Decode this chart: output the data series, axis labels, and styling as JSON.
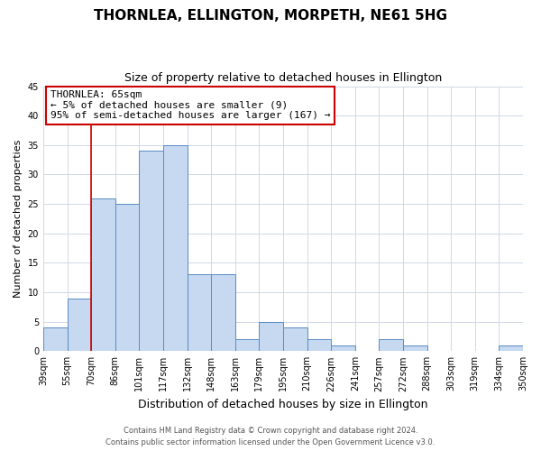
{
  "title": "THORNLEA, ELLINGTON, MORPETH, NE61 5HG",
  "subtitle": "Size of property relative to detached houses in Ellington",
  "xlabel": "Distribution of detached houses by size in Ellington",
  "ylabel": "Number of detached properties",
  "bin_labels": [
    "39sqm",
    "55sqm",
    "70sqm",
    "86sqm",
    "101sqm",
    "117sqm",
    "132sqm",
    "148sqm",
    "163sqm",
    "179sqm",
    "195sqm",
    "210sqm",
    "226sqm",
    "241sqm",
    "257sqm",
    "272sqm",
    "288sqm",
    "303sqm",
    "319sqm",
    "334sqm",
    "350sqm"
  ],
  "bar_heights": [
    4,
    9,
    26,
    25,
    34,
    35,
    13,
    13,
    2,
    5,
    4,
    2,
    1,
    0,
    2,
    1,
    0,
    0,
    0,
    1
  ],
  "bar_color": "#c6d9f1",
  "bar_edge_color": "#5a8ac6",
  "grid_color": "#d0d8e4",
  "red_line_bin_index": 2,
  "annotation_title": "THORNLEA: 65sqm",
  "annotation_line1": "← 5% of detached houses are smaller (9)",
  "annotation_line2": "95% of semi-detached houses are larger (167) →",
  "annotation_box_color": "#ffffff",
  "annotation_border_color": "#cc0000",
  "ylim": [
    0,
    45
  ],
  "yticks": [
    0,
    5,
    10,
    15,
    20,
    25,
    30,
    35,
    40,
    45
  ],
  "footer_line1": "Contains HM Land Registry data © Crown copyright and database right 2024.",
  "footer_line2": "Contains public sector information licensed under the Open Government Licence v3.0.",
  "background_color": "#ffffff",
  "title_fontsize": 11,
  "subtitle_fontsize": 9,
  "xlabel_fontsize": 9,
  "ylabel_fontsize": 8,
  "tick_fontsize": 7,
  "footer_fontsize": 6,
  "annotation_title_fontsize": 8.5,
  "annotation_body_fontsize": 8
}
